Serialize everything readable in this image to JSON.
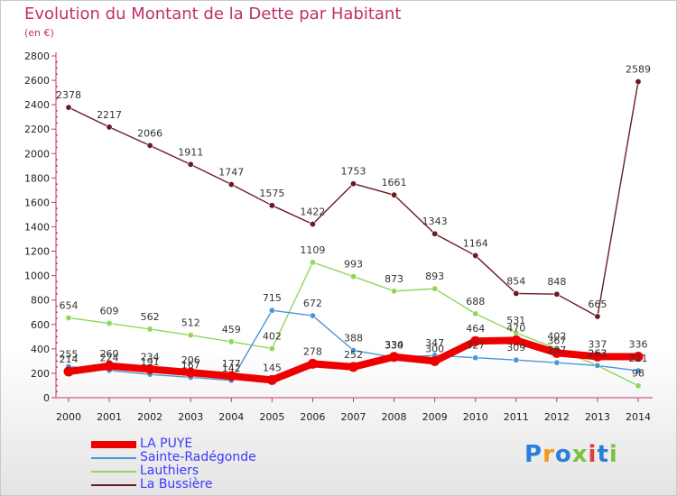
{
  "title": "Evolution du Montant de la Dette par Habitant",
  "subtitle": "(en €)",
  "logo": {
    "text": "Proxiti",
    "colors": [
      "#2a7fd8",
      "#f29a1a",
      "#2a7fd8",
      "#7cc242",
      "#e23b3b",
      "#2a7fd8",
      "#7cc242"
    ]
  },
  "chart_data": {
    "type": "line",
    "title": "Evolution du Montant de la Dette par Habitant",
    "subtitle": "(en €)",
    "x": [
      "2000",
      "2001",
      "2002",
      "2003",
      "2004",
      "2005",
      "2006",
      "2007",
      "2008",
      "2009",
      "2010",
      "2011",
      "2012",
      "2013",
      "2014"
    ],
    "ylim": [
      0,
      2800
    ],
    "yticks": [
      "0",
      "200",
      "400",
      "600",
      "800",
      "1000",
      "1200",
      "1400",
      "1600",
      "1800",
      "2000",
      "2200",
      "2400",
      "2600",
      "2800"
    ],
    "grid": false,
    "legend": "bottom-left",
    "series": [
      {
        "name": "La Bussière",
        "color": "#6b1a24",
        "values": [
          2378,
          2217,
          2066,
          1911,
          1747,
          1575,
          1422,
          1753,
          1661,
          1343,
          1164,
          854,
          848,
          665,
          2589
        ],
        "labels": [
          "2378",
          "2217",
          "2066",
          "1911",
          "1747",
          "1575",
          "1422",
          "1753",
          "1661",
          "1343",
          "1164",
          "854",
          "848",
          "665",
          "2589"
        ]
      },
      {
        "name": "Lauthiers",
        "color": "#8fd65c",
        "values": [
          654,
          609,
          562,
          512,
          459,
          402,
          1109,
          993,
          873,
          893,
          688,
          531,
          402,
          263,
          98
        ],
        "labels": [
          "654",
          "609",
          "562",
          "512",
          "459",
          "402",
          "1109",
          "993",
          "873",
          "893",
          "688",
          "531",
          "402",
          "263",
          "98"
        ]
      },
      {
        "name": "Sainte-Radégonde",
        "color": "#4a96d8",
        "values": [
          255,
          224,
          191,
          167,
          142,
          715,
          672,
          388,
          330,
          347,
          327,
          309,
          287,
          263,
          221
        ],
        "labels": [
          "255",
          "224",
          "191",
          "167",
          "142",
          "715",
          "672",
          "388",
          "330",
          "347",
          "327",
          "309",
          "287",
          "263",
          "221"
        ]
      },
      {
        "name": "LA PUYE",
        "color": "#ee0000",
        "values": [
          214,
          260,
          234,
          206,
          177,
          145,
          278,
          252,
          334,
          300,
          464,
          470,
          367,
          337,
          336
        ],
        "labels": [
          "214",
          "260",
          "234",
          "206",
          "177",
          "145",
          "278",
          "252",
          "334",
          "300",
          "464",
          "470",
          "367",
          "337",
          "336"
        ]
      }
    ],
    "legend_order": [
      "LA PUYE",
      "Sainte-Radégonde",
      "Lauthiers",
      "La Bussière"
    ]
  }
}
